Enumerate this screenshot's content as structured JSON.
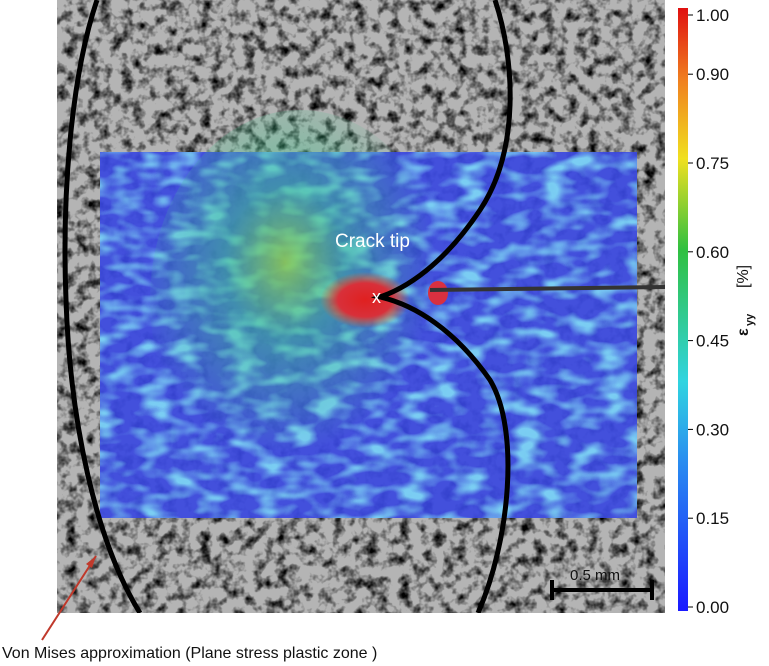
{
  "image": {
    "crack_tip_label": "Crack tip",
    "tip_marker": "x",
    "scale_bar": "0.5 mm",
    "caption": "Von Mises  approximation (Plane stress plastic zone )"
  },
  "colorbar": {
    "symbol": "ε",
    "subscript": "yy",
    "unit": "[%]",
    "lim": [
      0,
      1
    ],
    "ticks": [
      {
        "value": 0,
        "label": "0.00"
      },
      {
        "value": 0.15,
        "label": "0.15"
      },
      {
        "value": 0.3,
        "label": "0.30"
      },
      {
        "value": 0.45,
        "label": "0.45"
      },
      {
        "value": 0.6,
        "label": "0.60"
      },
      {
        "value": 0.75,
        "label": "0.75"
      },
      {
        "value": 0.9,
        "label": "0.90"
      },
      {
        "value": 1,
        "label": "1.00"
      }
    ]
  }
}
